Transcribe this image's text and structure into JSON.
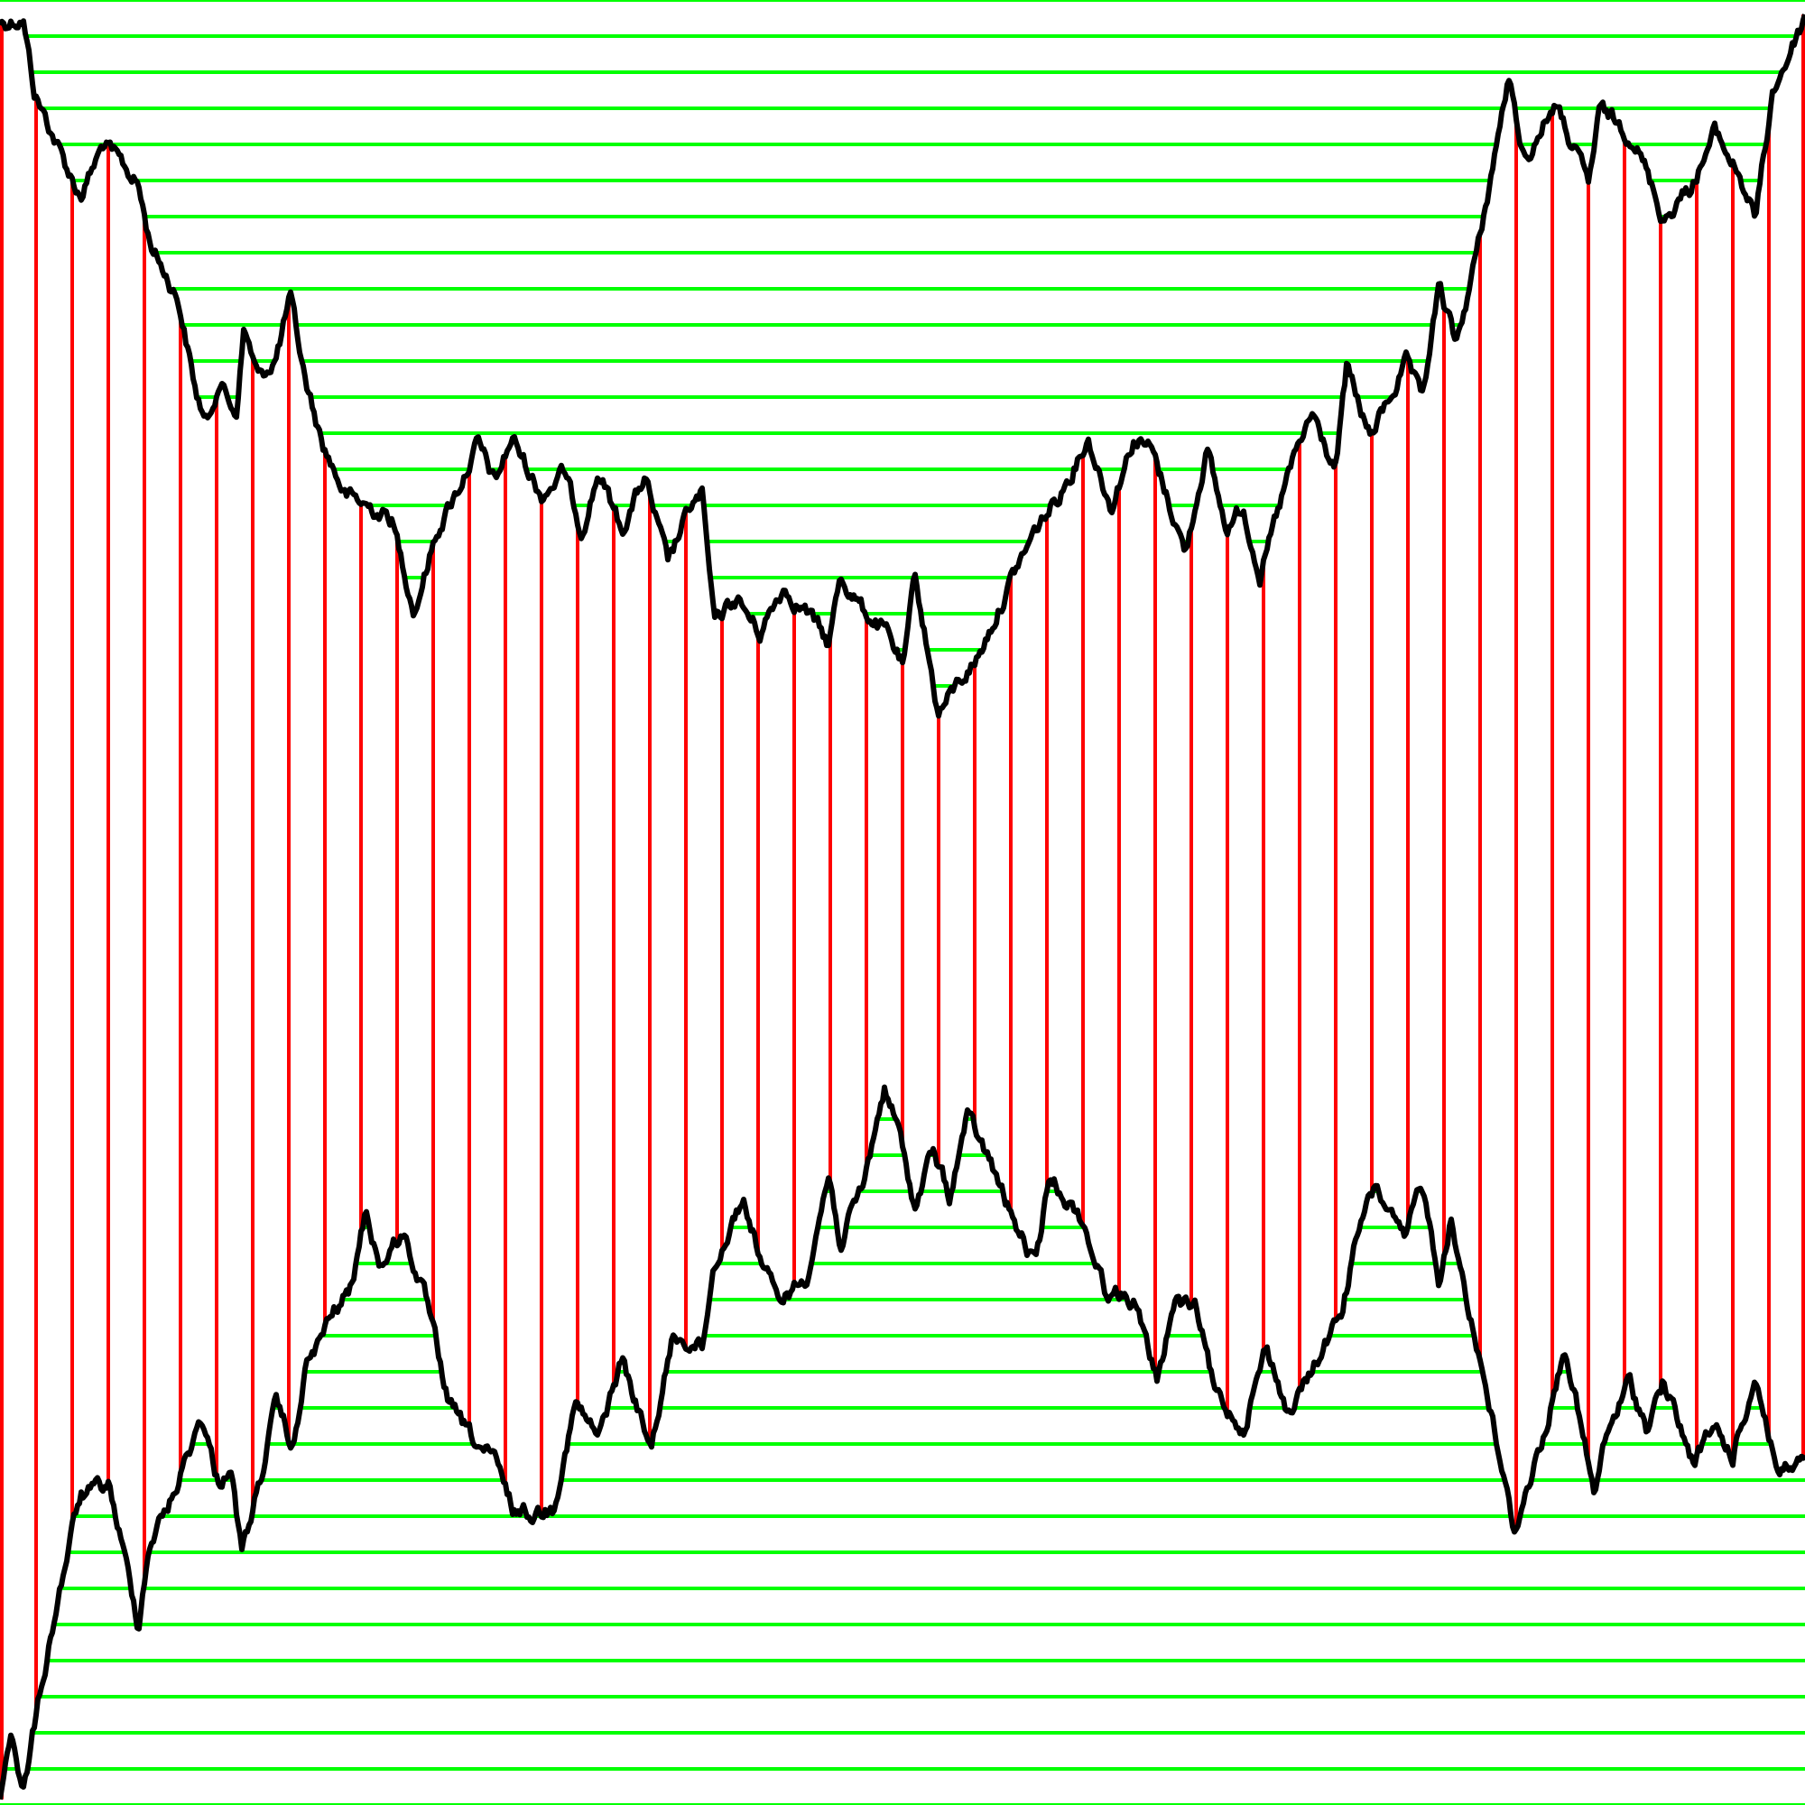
{
  "diagram": {
    "colors": {
      "background": "#ffffff",
      "horizontal_lines": "#00ff00",
      "vertical_lines": "#ff0000",
      "curves": "#000000"
    },
    "curves": [
      "upper-random-walk",
      "lower-random-walk"
    ]
  }
}
